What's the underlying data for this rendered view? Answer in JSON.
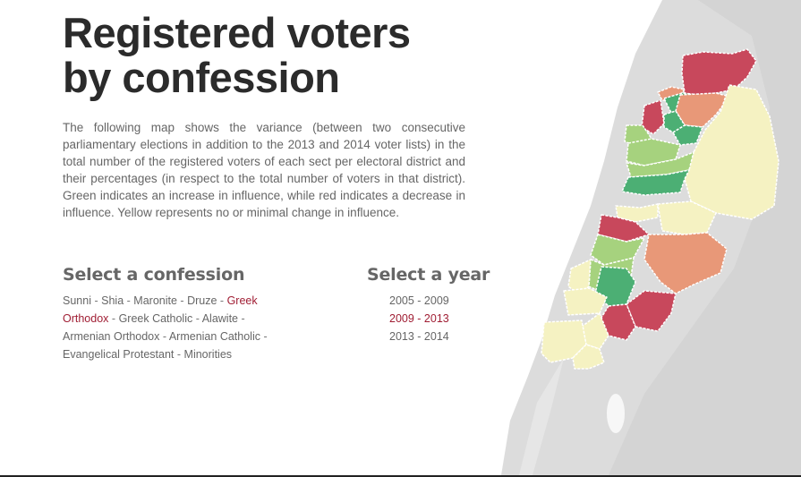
{
  "title_line1": "Registered voters",
  "title_line2": "by confession",
  "intro": "The following map shows the variance (between two consecutive parliamentary elections in addition to the 2013 and 2014 voter lists) in the total number of the registered voters of each sect per electoral district and their percentages (in respect to the total number of voters in that district). Green indicates an increase in influence, while red indicates a decrease in influence. Yellow represents no or minimal change in influence.",
  "confession_heading": "Select a confession",
  "year_heading": "Select a year",
  "confessions": [
    {
      "label": "Sunni",
      "active": false
    },
    {
      "label": "Shia",
      "active": false
    },
    {
      "label": "Maronite",
      "active": false
    },
    {
      "label": "Druze",
      "active": false
    },
    {
      "label": "Greek Orthodox",
      "active": true
    },
    {
      "label": "Greek Catholic",
      "active": false
    },
    {
      "label": "Alawite",
      "active": false
    },
    {
      "label": "Armenian Orthodox",
      "active": false
    },
    {
      "label": "Armenian Catholic",
      "active": false
    },
    {
      "label": "Evangelical Protestant",
      "active": false
    },
    {
      "label": "Minorities",
      "active": false
    }
  ],
  "separator": "-",
  "years": [
    {
      "label": "2005 - 2009",
      "active": false
    },
    {
      "label": "2009 - 2013",
      "active": true
    },
    {
      "label": "2013 - 2014",
      "active": false
    }
  ],
  "colors": {
    "active_text": "#a01e34",
    "red": "#c8485c",
    "orange": "#e89878",
    "yellow": "#f5f2c2",
    "light_green": "#a6d27e",
    "green": "#4caf74"
  }
}
